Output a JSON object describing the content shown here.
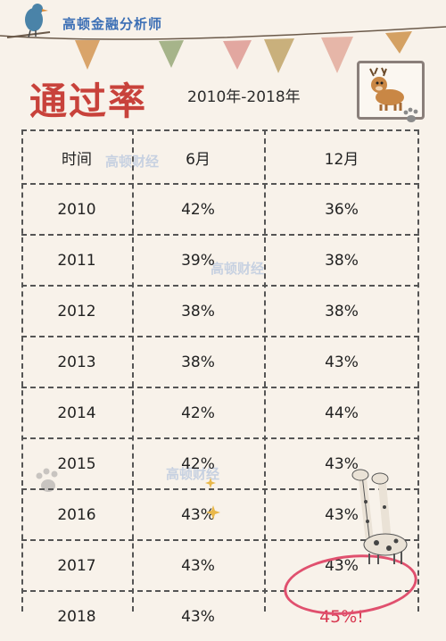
{
  "brand": {
    "name": "高顿金融分析师"
  },
  "title": {
    "main": "通过率",
    "range": "2010年-2018年"
  },
  "watermark": {
    "text": "高顿财经"
  },
  "table": {
    "headers": [
      "时间",
      "6月",
      "12月"
    ],
    "rows": [
      {
        "year": "2010",
        "june": "42%",
        "december": "36%"
      },
      {
        "year": "2011",
        "june": "39%",
        "december": "38%"
      },
      {
        "year": "2012",
        "june": "38%",
        "december": "38%"
      },
      {
        "year": "2013",
        "june": "38%",
        "december": "43%"
      },
      {
        "year": "2014",
        "june": "42%",
        "december": "44%"
      },
      {
        "year": "2015",
        "june": "42%",
        "december": "43%"
      },
      {
        "year": "2016",
        "june": "43%",
        "december": "43%"
      },
      {
        "year": "2017",
        "june": "43%",
        "december": "43%"
      },
      {
        "year": "2018",
        "june": "43%",
        "december": "45%!"
      }
    ]
  },
  "colors": {
    "title": "#c8423b",
    "brand": "#3c6fb5",
    "highlight": "#e0506e",
    "background": "#f8f2ea"
  },
  "icons": [
    "bird-icon",
    "bunting-flags",
    "deer-icon",
    "giraffe-icon",
    "paw-icon",
    "star-icon"
  ]
}
